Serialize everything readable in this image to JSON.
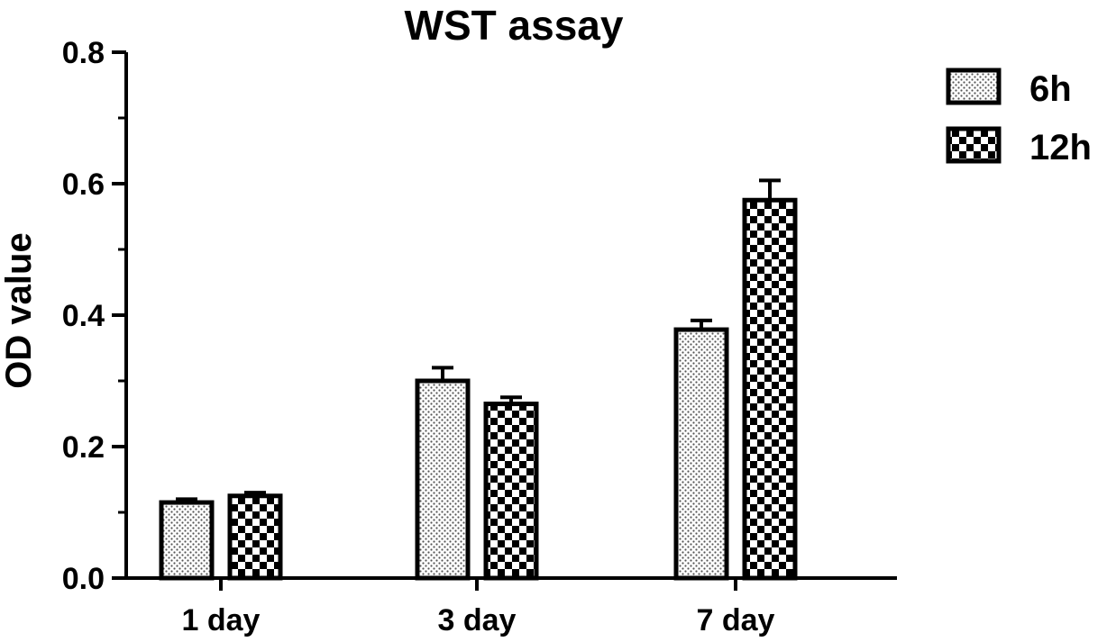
{
  "chart_data": {
    "type": "bar",
    "title": "WST assay",
    "xlabel": "",
    "ylabel": "OD value",
    "ylim": [
      0,
      0.8
    ],
    "yticks": [
      "0.0",
      "0.2",
      "0.4",
      "0.6",
      "0.8"
    ],
    "categories": [
      "1 day",
      "3 day",
      "7 day"
    ],
    "series": [
      {
        "name": "6h",
        "pattern": "dots",
        "values": [
          0.115,
          0.3,
          0.378
        ],
        "errors": [
          0.005,
          0.02,
          0.014
        ]
      },
      {
        "name": "12h",
        "pattern": "checker",
        "values": [
          0.125,
          0.265,
          0.575
        ],
        "errors": [
          0.005,
          0.01,
          0.03
        ]
      }
    ],
    "legend_position": "top-right",
    "grid": false,
    "colors": {
      "fill": "#ffffff",
      "stroke": "#000000"
    }
  }
}
